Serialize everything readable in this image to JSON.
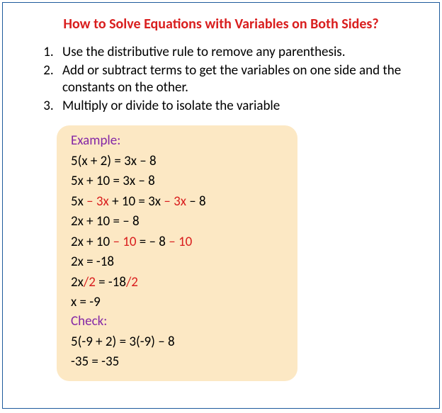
{
  "title": {
    "text": "How to Solve Equations with Variables on Both Sides?",
    "color": "#d91e1e"
  },
  "steps": [
    "Use the distributive rule to remove any parenthesis.",
    "Add or subtract terms to get the variables on one side and the constants on the other.",
    "Multiply or divide to isolate the variable"
  ],
  "example": {
    "label": "Example:",
    "label_color": "#8528a6",
    "box_bg": "#fce8c4",
    "highlight_color": "#d91e1e",
    "lines": [
      {
        "parts": [
          {
            "t": "5(x + 2) = 3x – 8"
          }
        ]
      },
      {
        "parts": [
          {
            "t": "5x + 10 = 3x – 8"
          }
        ]
      },
      {
        "parts": [
          {
            "t": "5x "
          },
          {
            "t": "– 3x",
            "hl": true
          },
          {
            "t": " + 10 = 3x "
          },
          {
            "t": "– 3x",
            "hl": true
          },
          {
            "t": " – 8"
          }
        ]
      },
      {
        "parts": [
          {
            "t": "2x + 10 = – 8"
          }
        ]
      },
      {
        "parts": [
          {
            "t": "2x + 10 "
          },
          {
            "t": "– 10",
            "hl": true
          },
          {
            "t": " = – 8 "
          },
          {
            "t": "– 10",
            "hl": true
          }
        ]
      },
      {
        "parts": [
          {
            "t": "2x = -18"
          }
        ]
      },
      {
        "parts": [
          {
            "t": "2x"
          },
          {
            "t": "/2",
            "hl": true
          },
          {
            "t": " = -18"
          },
          {
            "t": "/2",
            "hl": true
          }
        ]
      },
      {
        "parts": [
          {
            "t": "x = -9"
          }
        ]
      }
    ],
    "check_label": "Check:",
    "check_lines": [
      {
        "parts": [
          {
            "t": "5(-9 + 2) = 3(-9) – 8"
          }
        ]
      },
      {
        "parts": [
          {
            "t": "-35 = -35"
          }
        ]
      }
    ]
  }
}
